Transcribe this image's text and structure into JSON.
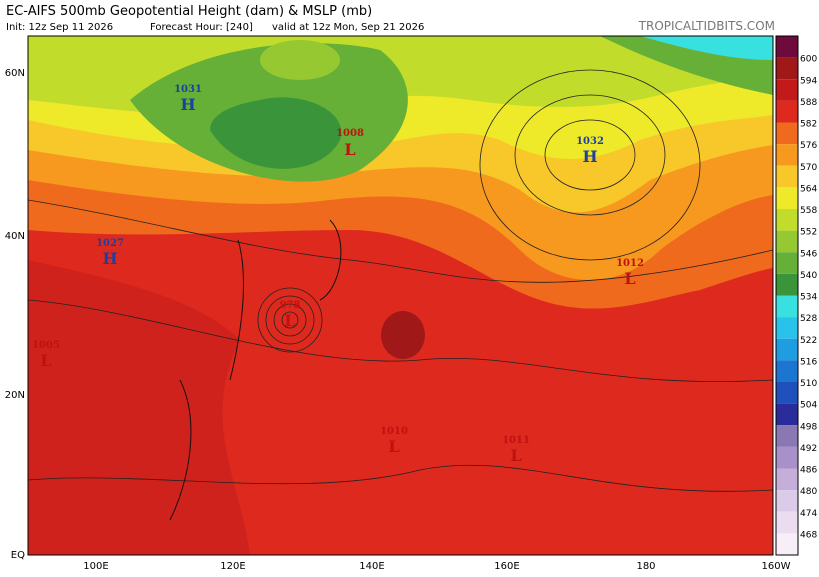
{
  "header": {
    "title": "EC-AIFS 500mb Geopotential Height (dam) & MSLP (mb)",
    "init": "Init: 12z Sep 11 2026",
    "forecast": "Forecast Hour: [240]",
    "valid": "valid at 12z Mon, Sep 21 2026",
    "site": "TROPICALTIDBITS.COM"
  },
  "map": {
    "lat_labels": [
      "60N",
      "40N",
      "20N",
      "EQ"
    ],
    "lon_labels": [
      "100E",
      "120E",
      "140E",
      "160E",
      "180",
      "160W"
    ],
    "centers": [
      {
        "symbol": "H",
        "value": "1031"
      },
      {
        "symbol": "H",
        "value": "1032"
      },
      {
        "symbol": "H",
        "value": "1027"
      },
      {
        "symbol": "L",
        "value": "1008"
      },
      {
        "symbol": "L",
        "value": "1012"
      },
      {
        "symbol": "L",
        "value": "1005"
      },
      {
        "symbol": "L",
        "value": "1010"
      },
      {
        "symbol": "L",
        "value": "1011"
      },
      {
        "symbol": "L",
        "value": "978"
      }
    ]
  },
  "colorbar": {
    "levels": [
      600,
      594,
      588,
      582,
      576,
      570,
      564,
      558,
      552,
      546,
      540,
      534,
      528,
      522,
      516,
      510,
      504,
      498,
      492,
      486,
      480,
      474,
      468
    ],
    "colors": [
      "#a01818",
      "#c21a1a",
      "#de2a1e",
      "#f06a1e",
      "#f7981f",
      "#f8c82a",
      "#eeea2a",
      "#c2dc2c",
      "#96c832",
      "#66b038",
      "#3a943a",
      "#38e0e0",
      "#28c2ea",
      "#1e9ee0",
      "#1b76d2",
      "#2050bc",
      "#2b2c9c",
      "#8a78b2",
      "#a890c8",
      "#c6aeda",
      "#dccbe8",
      "#ecdcf0",
      "#f7eef7"
    ],
    "top_color": "#6e0a3c"
  }
}
